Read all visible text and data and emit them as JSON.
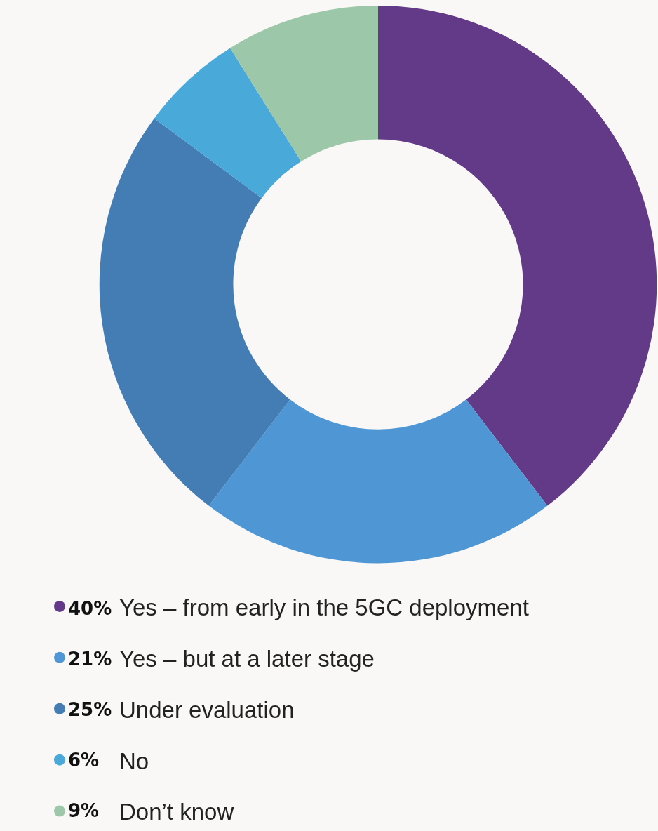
{
  "chart_data": {
    "type": "donut",
    "categories": [
      "Yes – from early in the 5GC deployment",
      "Yes – but at a later stage",
      "Under evaluation",
      "No",
      "Don’t know"
    ],
    "values": [
      40,
      21,
      25,
      6,
      9
    ],
    "value_labels": [
      "40%",
      "21%",
      "25%",
      "6%",
      "9%"
    ],
    "colors": [
      "#633a87",
      "#4f97d4",
      "#437db4",
      "#49a9d8",
      "#9cc7a8"
    ],
    "legend": "bottom"
  }
}
